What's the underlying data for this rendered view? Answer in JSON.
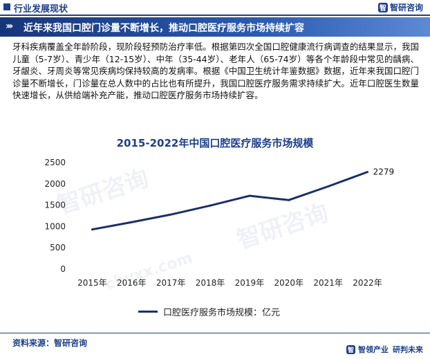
{
  "header": {
    "title": "行业发展现状",
    "logo_mark": "智",
    "logo_text": "智研咨询"
  },
  "banner": {
    "chevrons": "›››",
    "title": "近年来我国口腔门诊量不断增长，推动口腔医疗服务市场持续扩容"
  },
  "paragraph": "牙科疾病覆盖全年龄阶段，现阶段轻预防治疗率低。根据第四次全国口腔健康流行病调查的结果显示，我国儿童（5-7岁）、青少年（12-15岁）、中年（35-44岁）、老年人（65-74岁）等各个年龄段中常见的龋病、牙龈炎、牙周炎等常见疾病均保持较高的发病率。根据《中国卫生统计年鉴数据》数据，近年来我国口腔门诊量不断增长，门诊量在总人数中的占比也有所提升，我国口腔医疗服务需求持续扩大。近年口腔医生数量快速增长，从供给端补充产能，推动口腔医疗服务市场持续扩容。",
  "watermark": {
    "text_cn": "智研咨询",
    "text_en": "chyxx.com"
  },
  "chart_data": {
    "type": "line",
    "title": "2015-2022年中国口腔医疗服务市场规模",
    "categories": [
      "2015年",
      "2016年",
      "2017年",
      "2018年",
      "2019年",
      "2020年",
      "2021年",
      "2022年"
    ],
    "series": [
      {
        "name": "口腔医疗服务市场规模：亿元",
        "values": [
          930,
          1100,
          1280,
          1490,
          1720,
          1620,
          1940,
          2279
        ],
        "color": "#1a2e6b"
      }
    ],
    "data_labels": [
      {
        "index": 7,
        "text": "2279"
      }
    ],
    "yticks": [
      0,
      500,
      1000,
      1500,
      2000,
      2500
    ],
    "ylim": [
      0,
      2500
    ],
    "grid": false,
    "legend_position": "bottom"
  },
  "footer": {
    "source": "资料来源：智研咨询",
    "slogan_mark": "智",
    "slogan_left": "智领产业",
    "slogan_right": "研判未来"
  }
}
